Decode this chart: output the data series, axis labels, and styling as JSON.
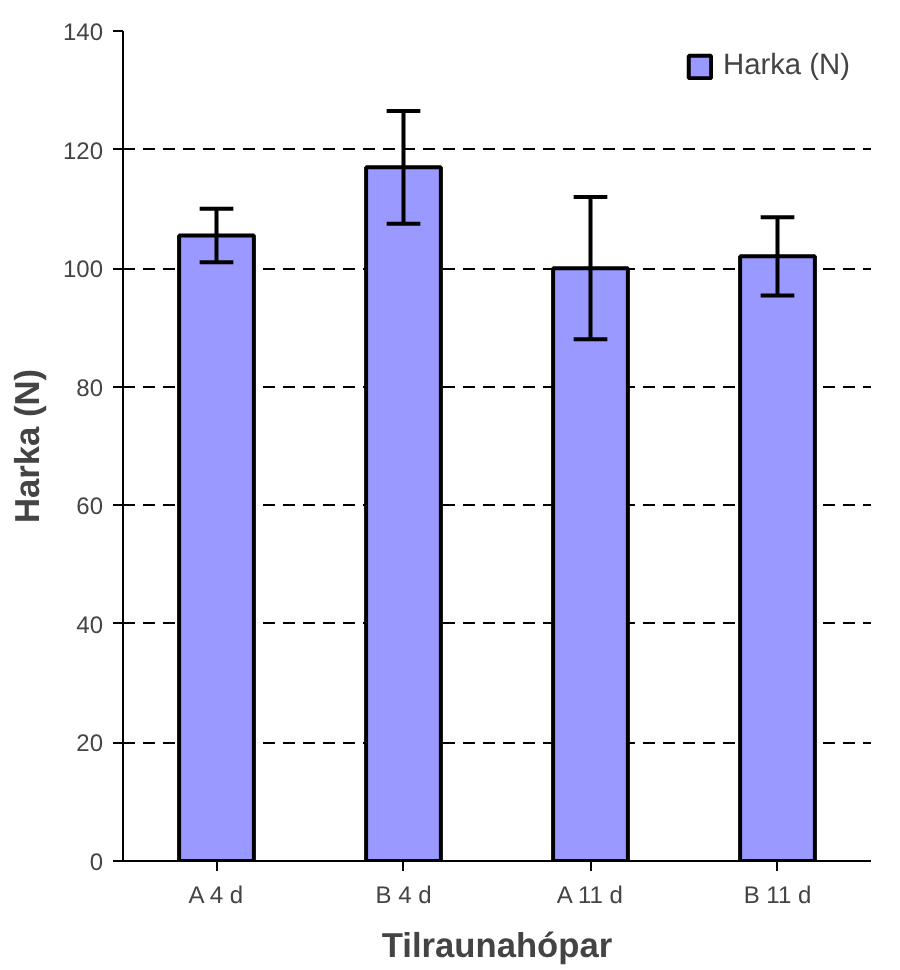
{
  "chart_data": {
    "type": "bar",
    "xlabel": "Tilraunahópar",
    "ylabel": "Harka (N)",
    "categories": [
      "A 4 d",
      "B 4 d",
      "A 11 d",
      "B 11 d"
    ],
    "series": [
      {
        "name": "Harka (N)",
        "color": "#9999ff",
        "values": [
          105.5,
          117,
          100,
          102
        ],
        "errors": [
          4.5,
          9.5,
          12,
          6.6
        ]
      }
    ],
    "ylim": [
      0,
      140
    ],
    "yticks": [
      0,
      20,
      40,
      60,
      80,
      100,
      120,
      140
    ],
    "grid": "y",
    "legend": "top right"
  }
}
